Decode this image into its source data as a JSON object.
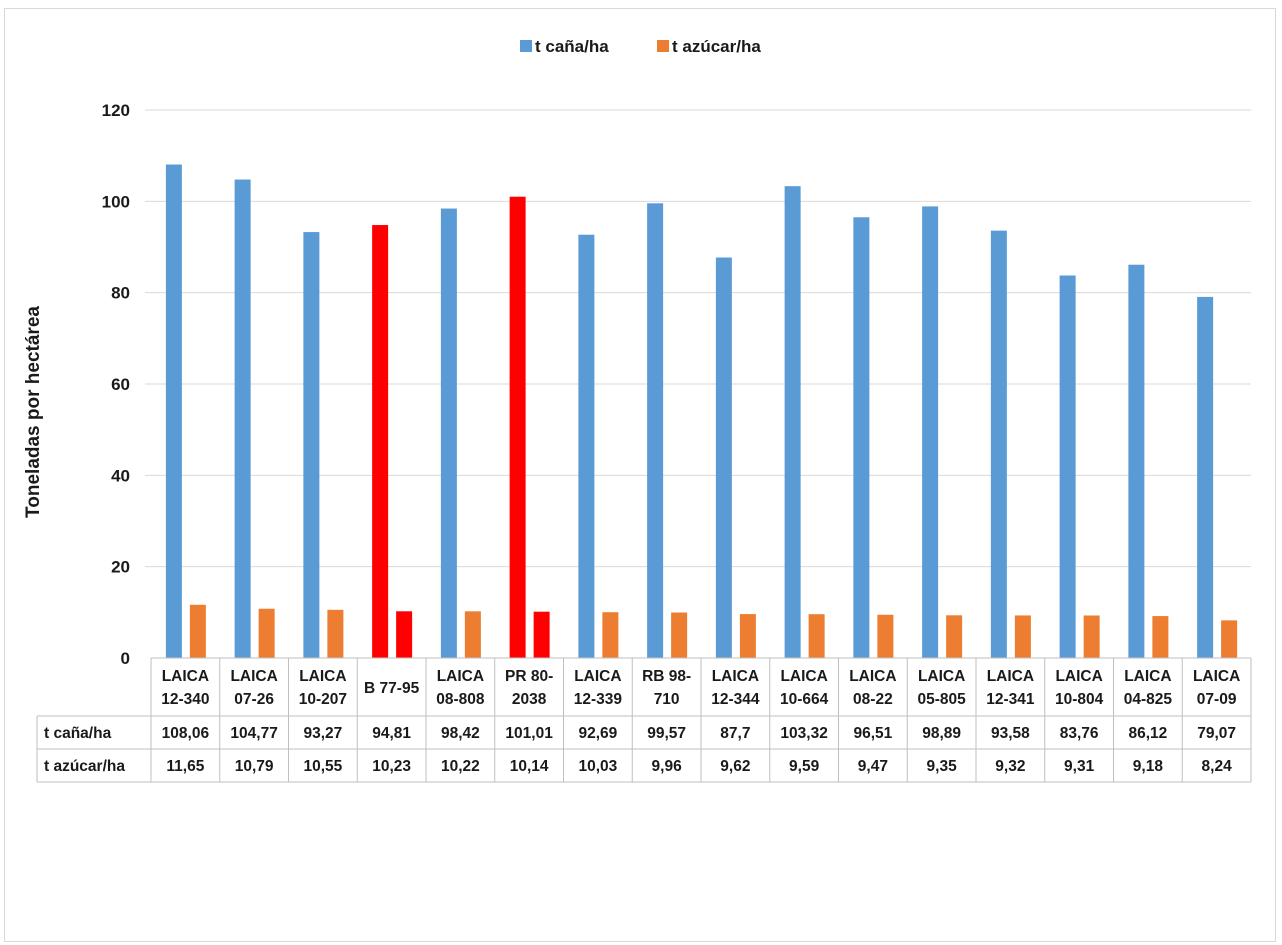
{
  "chart_data": {
    "type": "bar",
    "title": "",
    "ylabel": "Toneladas por hectárea",
    "xlabel": "",
    "ylim": [
      0,
      120
    ],
    "yticks": [
      0,
      20,
      40,
      60,
      80,
      100,
      120
    ],
    "grid": true,
    "legend_position": "top",
    "categories": [
      [
        "LAICA",
        "12-340"
      ],
      [
        "LAICA",
        "07-26"
      ],
      [
        "LAICA",
        "10-207"
      ],
      [
        "B 77-95"
      ],
      [
        "LAICA",
        "08-808"
      ],
      [
        "PR 80-",
        "2038"
      ],
      [
        "LAICA",
        "12-339"
      ],
      [
        "RB 98-",
        "710"
      ],
      [
        "LAICA",
        "12-344"
      ],
      [
        "LAICA",
        "10-664"
      ],
      [
        "LAICA",
        "08-22"
      ],
      [
        "LAICA",
        "05-805"
      ],
      [
        "LAICA",
        "12-341"
      ],
      [
        "LAICA",
        "10-804"
      ],
      [
        "LAICA",
        "04-825"
      ],
      [
        "LAICA",
        "07-09"
      ]
    ],
    "series": [
      {
        "name": "t caña/ha",
        "color": "#5b9bd5",
        "highlight_color": "#ff0000",
        "highlight_indices": [
          3,
          5
        ],
        "values": [
          108.06,
          104.77,
          93.27,
          94.81,
          98.42,
          101.01,
          92.69,
          99.57,
          87.7,
          103.32,
          96.51,
          98.89,
          93.58,
          83.76,
          86.12,
          79.07
        ],
        "labels": [
          "108,06",
          "104,77",
          "93,27",
          "94,81",
          "98,42",
          "101,01",
          "92,69",
          "99,57",
          "87,7",
          "103,32",
          "96,51",
          "98,89",
          "93,58",
          "83,76",
          "86,12",
          "79,07"
        ]
      },
      {
        "name": "t azúcar/ha",
        "color": "#ed7d31",
        "highlight_color": "#ff0000",
        "highlight_indices": [
          3,
          5
        ],
        "values": [
          11.65,
          10.79,
          10.55,
          10.23,
          10.22,
          10.14,
          10.03,
          9.96,
          9.62,
          9.59,
          9.47,
          9.35,
          9.32,
          9.31,
          9.18,
          8.24
        ],
        "labels": [
          "11,65",
          "10,79",
          "10,55",
          "10,23",
          "10,22",
          "10,14",
          "10,03",
          "9,96",
          "9,62",
          "9,59",
          "9,47",
          "9,35",
          "9,32",
          "9,31",
          "9,18",
          "8,24"
        ]
      }
    ]
  }
}
